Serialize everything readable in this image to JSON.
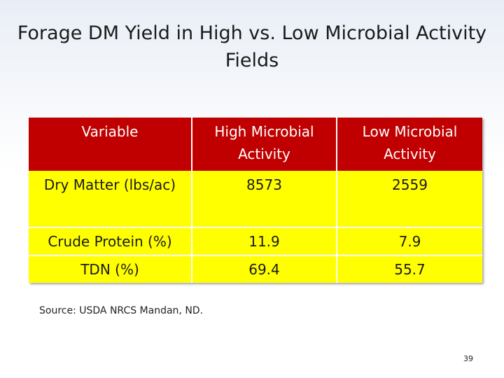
{
  "slide": {
    "title": "Forage DM Yield in High vs. Low Microbial Activity Fields",
    "source": "Source: USDA NRCS Mandan, ND.",
    "page_number": "39"
  },
  "table": {
    "headers": [
      "Variable",
      "High Microbial Activity",
      "Low Microbial Activity"
    ],
    "rows": [
      {
        "variable": "Dry Matter (lbs/ac)",
        "high": "8573",
        "low": "2559"
      },
      {
        "variable": "Crude Protein (%)",
        "high": "11.9",
        "low": "7.9"
      },
      {
        "variable": "TDN (%)",
        "high": "69.4",
        "low": "55.7"
      }
    ]
  },
  "colors": {
    "header_bg": "#c00000",
    "body_bg": "#ffff00",
    "header_text": "#ffffff"
  }
}
